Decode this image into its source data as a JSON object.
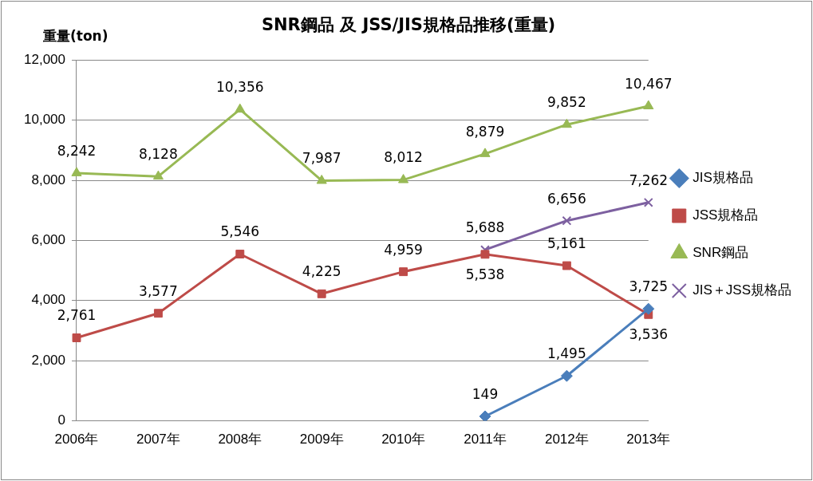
{
  "chart_data": {
    "type": "line",
    "title": "SNR鋼品 及 JSS/JIS規格品推移(重量)",
    "ylabel": "重量(ton)",
    "categories": [
      "2006年",
      "2007年",
      "2008年",
      "2009年",
      "2010年",
      "2011年",
      "2012年",
      "2013年"
    ],
    "series": [
      {
        "name": "JIS規格品",
        "color": "#4a7ebb",
        "marker": "diamond",
        "values": [
          null,
          null,
          null,
          null,
          null,
          149,
          1495,
          3725
        ],
        "value_labels": [
          null,
          null,
          null,
          null,
          null,
          "149",
          "1,495",
          "3,725"
        ]
      },
      {
        "name": "JSS規格品",
        "color": "#be4b48",
        "marker": "square",
        "values": [
          2761,
          3577,
          5546,
          4225,
          4959,
          5538,
          5161,
          3536
        ],
        "value_labels": [
          "2,761",
          "3,577",
          "5,546",
          "4,225",
          "4,959",
          "5,538",
          "5,161",
          "3,536"
        ]
      },
      {
        "name": "SNR鋼品",
        "color": "#98b954",
        "marker": "triangle",
        "values": [
          8242,
          8128,
          10356,
          7987,
          8012,
          8879,
          9852,
          10467
        ],
        "value_labels": [
          "8,242",
          "8,128",
          "10,356",
          "7,987",
          "8,012",
          "8,879",
          "9,852",
          "10,467"
        ]
      },
      {
        "name": "JIS＋JSS規格品",
        "color": "#7d60a0",
        "marker": "cross",
        "values": [
          null,
          null,
          null,
          null,
          null,
          5688,
          6656,
          7262
        ],
        "value_labels": [
          null,
          null,
          null,
          null,
          null,
          "5,688",
          "6,656",
          "7,262"
        ]
      }
    ],
    "ylim": [
      0,
      12000
    ],
    "yticks": [
      0,
      {
        "value": 2000,
        "label": "2,000"
      },
      {
        "value": 4000,
        "label": "4,000"
      },
      {
        "value": 6000,
        "label": "6,000"
      },
      {
        "value": 8000,
        "label": "8,000"
      },
      {
        "value": 10000,
        "label": "10,000"
      },
      {
        "value": 12000,
        "label": "12,000"
      }
    ],
    "grid": "y",
    "legend": "right"
  }
}
